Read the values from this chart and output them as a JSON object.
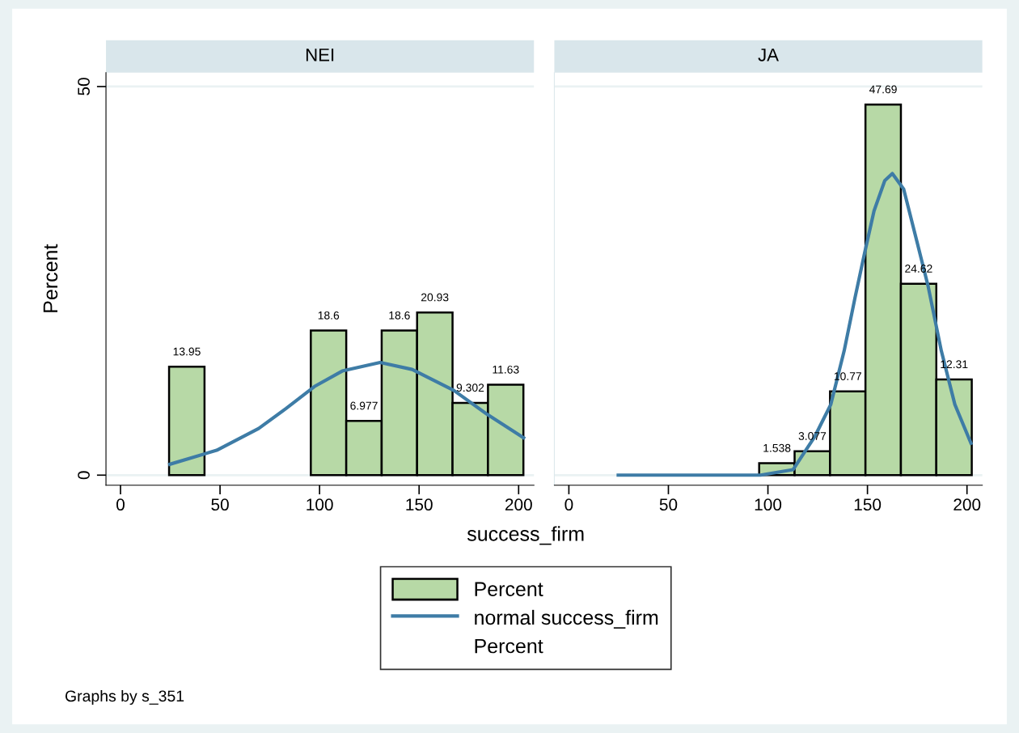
{
  "chart_data": [
    {
      "type": "histogram",
      "title": "NEI",
      "xlabel": "success_firm",
      "ylabel": "Percent",
      "bins": [
        24.4,
        42.2,
        60,
        77.8,
        95.6,
        113.4,
        131.2,
        149,
        166.8,
        184.6,
        202.4
      ],
      "series": [
        {
          "name": "Percent",
          "color": "#b7d9a6",
          "values": [
            13.95,
            null,
            null,
            null,
            18.6,
            6.977,
            18.6,
            20.93,
            9.302,
            11.63
          ],
          "value_labels": [
            "13.95",
            null,
            null,
            null,
            "18.6",
            "6.977",
            "18.6",
            "20.93",
            "9.302",
            "11.63"
          ]
        },
        {
          "name": "normal success_firm",
          "type": "line",
          "color": "#3e7ca6",
          "x": [
            24.8,
            48.3,
            69.4,
            83.3,
            97.4,
            111.4,
            130.4,
            146.5,
            167.5,
            184.3,
            202.5
          ],
          "values": [
            1.4,
            3.2,
            6.0,
            8.6,
            11.4,
            13.4,
            14.5,
            13.6,
            10.9,
            7.8,
            4.8
          ]
        },
        {
          "name": "Percent",
          "type": "scatter",
          "marker": "none",
          "values": [
            null,
            null,
            null,
            null,
            null,
            null,
            null,
            null,
            null,
            null
          ]
        }
      ],
      "xlim": [
        -7.3,
        207.7
      ],
      "ylim": [
        -1.3,
        51.8
      ],
      "xticks": [
        0,
        50,
        100,
        150,
        200
      ],
      "yticks": [
        0,
        50
      ],
      "grid": "y",
      "legend": "bottom",
      "annotations": [
        "Graphs by s_351"
      ]
    },
    {
      "type": "histogram",
      "title": "JA",
      "bins": [
        24.4,
        42.2,
        60,
        77.8,
        95.6,
        113.4,
        131.2,
        149,
        166.8,
        184.6,
        202.4
      ],
      "series": [
        {
          "color": "#b7d9a6",
          "values": [
            null,
            null,
            null,
            null,
            1.538,
            3.077,
            10.77,
            47.69,
            24.62,
            12.31
          ],
          "value_labels": [
            null,
            null,
            null,
            null,
            "1.538",
            "3.077",
            "10.77",
            "47.69",
            "24.62",
            "12.31"
          ]
        },
        {
          "type": "line",
          "color": "#3e7ca6",
          "x": [
            24.8,
            60,
            96.3,
            112.6,
            123.4,
            131.6,
            138.3,
            143.8,
            148.5,
            153.3,
            158.7,
            162.5,
            168.2,
            175,
            180.4,
            187.1,
            193.9,
            202
          ],
          "values": [
            0,
            0,
            0,
            0.7,
            4.9,
            9.1,
            16,
            22.9,
            28.5,
            34,
            37.9,
            38.8,
            36.8,
            29.9,
            24.4,
            16,
            9.1,
            4.1
          ]
        },
        {
          "type": "scatter",
          "marker": "none",
          "values": [
            null,
            null,
            null,
            null,
            null,
            null,
            null,
            null,
            null,
            null
          ]
        }
      ],
      "xlim": [
        -7.3,
        207.7
      ],
      "ylim": [
        -1.3,
        51.8
      ],
      "xticks": [
        0,
        50,
        100,
        150,
        200
      ],
      "yticks": [
        0,
        50
      ],
      "grid": "y",
      "tick_labels": "x"
    }
  ]
}
